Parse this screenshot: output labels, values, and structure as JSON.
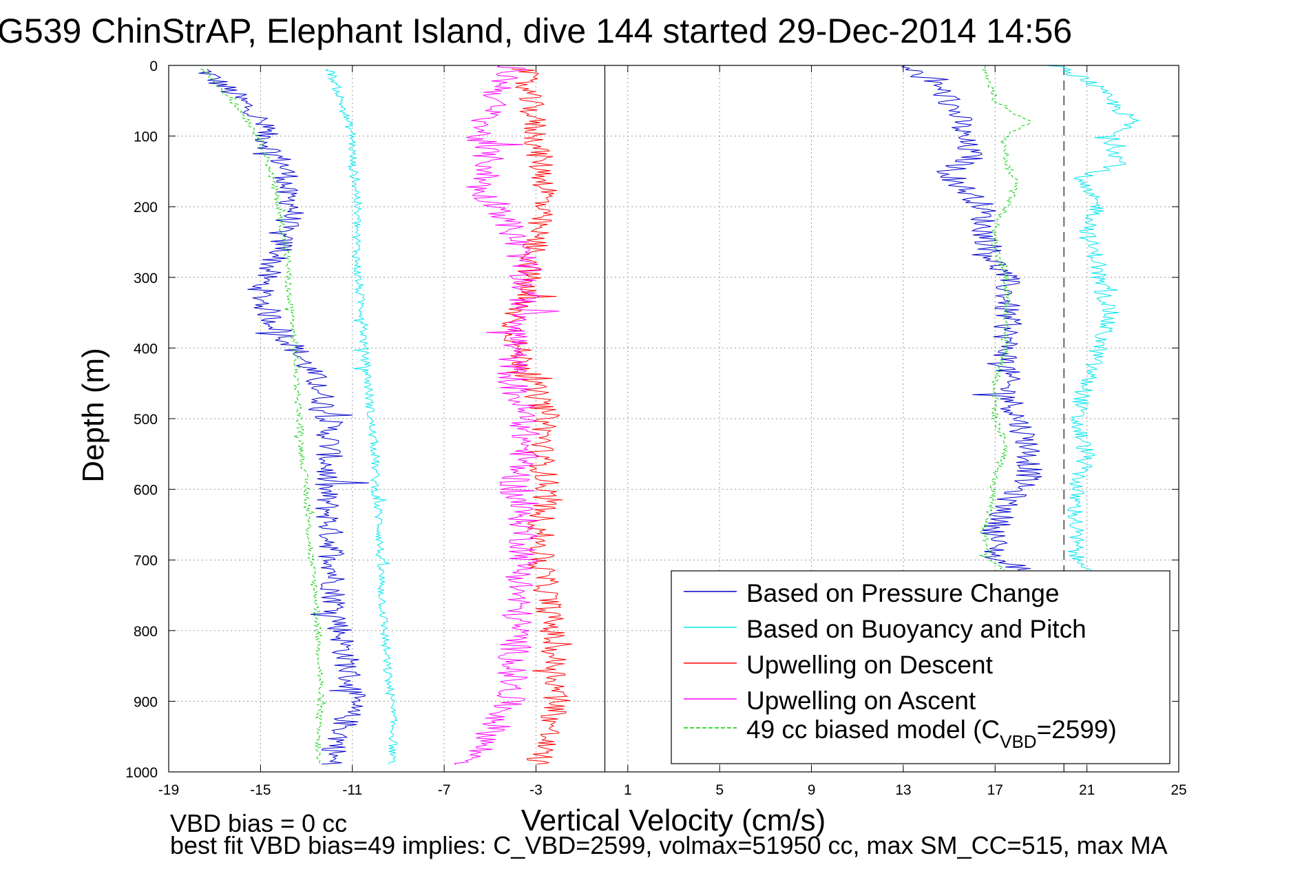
{
  "chart_data": {
    "type": "line",
    "title": "G539 ChinStrAP, Elephant Island, dive 144 started 29-Dec-2014 14:56",
    "xlabel": "Vertical Velocity (cm/s)",
    "ylabel": "Depth (m)",
    "xlim": [
      -19,
      25
    ],
    "ylim": [
      1000,
      0
    ],
    "y_reversed": true,
    "grid": true,
    "xticks": [
      -19,
      -15,
      -11,
      -7,
      -3,
      1,
      5,
      9,
      13,
      17,
      21,
      25
    ],
    "xtick_labels": [
      "-19",
      "-15",
      "-11",
      "-7",
      "-3",
      "1",
      "5",
      "9",
      "13",
      "17",
      "21",
      "25"
    ],
    "yticks": [
      0,
      100,
      200,
      300,
      400,
      500,
      600,
      700,
      800,
      900,
      1000
    ],
    "ytick_labels": [
      "0",
      "100",
      "200",
      "300",
      "400",
      "500",
      "600",
      "700",
      "800",
      "900",
      "1000"
    ],
    "reference_lines": [
      {
        "x": 0,
        "color": "#000000",
        "style": "solid"
      },
      {
        "x": 20,
        "color": "#666666",
        "style": "dashed"
      }
    ],
    "legend": {
      "placement": "bottom-right",
      "entries": [
        {
          "label": "Based on Pressure Change",
          "color": "#0000cc",
          "style": "solid"
        },
        {
          "label": "Based on Buoyancy and Pitch",
          "color": "#00e5ee",
          "style": "solid"
        },
        {
          "label": "Upwelling on Descent",
          "color": "#ff0000",
          "style": "solid"
        },
        {
          "label": "Upwelling on Ascent",
          "color": "#ff00ff",
          "style": "solid"
        },
        {
          "label_main": "49 cc biased model (C",
          "label_sub": "VBD",
          "label_tail": "=2599)",
          "color": "#00cc00",
          "style": "dashed"
        }
      ]
    },
    "series": [
      {
        "name": "Based on Pressure Change (descent)",
        "color": "#0000cc",
        "depth": [
          5,
          20,
          40,
          60,
          80,
          100,
          120,
          140,
          160,
          180,
          200,
          220,
          240,
          260,
          280,
          300,
          320,
          340,
          360,
          380,
          400,
          450,
          500,
          550,
          600,
          650,
          700,
          750,
          800,
          850,
          900,
          950,
          990
        ],
        "values": [
          -17.5,
          -17.0,
          -16.2,
          -15.5,
          -15.0,
          -14.8,
          -14.5,
          -14.0,
          -13.8,
          -14.0,
          -13.5,
          -13.8,
          -14.2,
          -14.0,
          -14.5,
          -14.8,
          -15.0,
          -14.8,
          -14.5,
          -14.0,
          -13.5,
          -12.5,
          -12.0,
          -12.0,
          -12.2,
          -12.0,
          -11.8,
          -11.8,
          -11.5,
          -11.2,
          -11.0,
          -11.5,
          -12.0
        ],
        "jitter": 0.6
      },
      {
        "name": "Based on Pressure Change (ascent)",
        "color": "#0000cc",
        "depth": [
          0,
          30,
          50,
          80,
          100,
          130,
          150,
          170,
          200,
          230,
          260,
          280,
          300,
          340,
          380,
          420,
          460,
          500,
          540,
          580,
          620,
          660,
          700,
          715
        ],
        "values": [
          13.0,
          14.5,
          15.0,
          15.5,
          15.5,
          16.0,
          15.0,
          15.5,
          16.5,
          16.5,
          16.8,
          17.0,
          17.5,
          17.5,
          17.5,
          17.5,
          17.5,
          18.0,
          18.5,
          18.5,
          17.5,
          17.0,
          17.0,
          18.5
        ],
        "jitter": 0.6
      },
      {
        "name": "Based on Buoyancy and Pitch (descent)",
        "color": "#00e5ee",
        "depth": [
          5,
          20,
          50,
          80,
          100,
          140,
          180,
          200,
          240,
          280,
          320,
          360,
          400,
          450,
          500,
          550,
          600,
          650,
          700,
          750,
          800,
          850,
          900,
          950,
          990
        ],
        "values": [
          -12.0,
          -11.8,
          -11.5,
          -11.2,
          -11.0,
          -11.0,
          -10.8,
          -10.8,
          -10.8,
          -10.8,
          -10.7,
          -10.5,
          -10.5,
          -10.3,
          -10.2,
          -10.0,
          -10.0,
          -9.8,
          -9.8,
          -9.7,
          -9.6,
          -9.5,
          -9.3,
          -9.2,
          -9.3
        ],
        "jitter": 0.2
      },
      {
        "name": "Based on Buoyancy and Pitch (ascent)",
        "color": "#00e5ee",
        "depth": [
          0,
          20,
          50,
          80,
          100,
          140,
          160,
          200,
          240,
          280,
          300,
          350,
          400,
          450,
          500,
          550,
          600,
          650,
          700,
          715
        ],
        "values": [
          19.5,
          21.0,
          22.0,
          23.0,
          22.0,
          22.5,
          20.5,
          21.5,
          21.0,
          21.5,
          21.5,
          22.0,
          21.5,
          21.0,
          20.5,
          21.0,
          20.5,
          20.5,
          20.5,
          21.5
        ],
        "jitter": 0.4
      },
      {
        "name": "Upwelling on Descent",
        "color": "#ff0000",
        "depth": [
          5,
          30,
          60,
          100,
          140,
          180,
          200,
          240,
          280,
          320,
          360,
          400,
          450,
          500,
          550,
          600,
          650,
          700,
          750,
          800,
          850,
          900,
          950,
          990
        ],
        "values": [
          -3.5,
          -3.5,
          -3.2,
          -3.0,
          -2.8,
          -2.5,
          -2.8,
          -3.0,
          -3.2,
          -3.5,
          -4.0,
          -3.8,
          -3.2,
          -2.5,
          -2.8,
          -2.5,
          -2.8,
          -2.8,
          -2.5,
          -2.3,
          -2.2,
          -2.0,
          -2.5,
          -3.0
        ],
        "jitter": 0.6
      },
      {
        "name": "Upwelling on Ascent",
        "color": "#ff00ff",
        "depth": [
          0,
          30,
          60,
          100,
          140,
          180,
          200,
          240,
          280,
          320,
          360,
          400,
          450,
          500,
          550,
          600,
          650,
          700,
          750,
          800,
          850,
          900,
          950,
          990
        ],
        "values": [
          -4.0,
          -4.5,
          -5.0,
          -5.5,
          -5.0,
          -5.5,
          -4.5,
          -4.0,
          -3.5,
          -3.5,
          -3.5,
          -4.0,
          -4.0,
          -3.5,
          -3.5,
          -4.0,
          -3.5,
          -3.5,
          -3.8,
          -3.8,
          -4.0,
          -4.2,
          -5.0,
          -6.0
        ],
        "jitter": 0.7
      },
      {
        "name": "49 cc biased model (descent)",
        "color": "#00cc00",
        "dashed": true,
        "depth": [
          5,
          40,
          80,
          120,
          160,
          200,
          240,
          280,
          320,
          360,
          400,
          450,
          500,
          550,
          600,
          650,
          700,
          750,
          800,
          850,
          900,
          950,
          990
        ],
        "values": [
          -17.5,
          -16.5,
          -15.5,
          -14.8,
          -14.5,
          -14.2,
          -14.0,
          -13.8,
          -13.8,
          -13.6,
          -13.5,
          -13.4,
          -13.3,
          -13.2,
          -13.0,
          -12.9,
          -12.8,
          -12.6,
          -12.5,
          -12.4,
          -12.4,
          -12.5,
          -12.5
        ],
        "jitter": 0.15
      },
      {
        "name": "49 cc biased model (ascent)",
        "color": "#00cc00",
        "dashed": true,
        "depth": [
          0,
          50,
          80,
          100,
          140,
          170,
          200,
          230,
          260,
          300,
          350,
          400,
          450,
          500,
          540,
          580,
          620,
          660,
          700,
          715
        ],
        "values": [
          16.5,
          17.0,
          18.5,
          17.5,
          17.5,
          18.0,
          17.5,
          17.0,
          17.0,
          17.5,
          17.5,
          17.5,
          17.0,
          17.0,
          17.5,
          17.0,
          16.8,
          16.5,
          16.8,
          17.5
        ],
        "jitter": 0.15
      }
    ]
  },
  "footer": {
    "line1": "VBD bias = 0 cc",
    "line2": "best fit VBD bias=49 implies: C_VBD=2599, volmax=51950 cc, max SM_CC=515, max MA"
  }
}
